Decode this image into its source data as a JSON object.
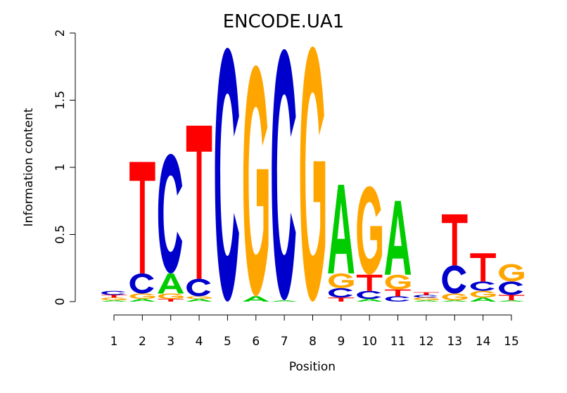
{
  "chart_data": {
    "type": "sequence-logo",
    "title": "ENCODE.UA1",
    "xlabel": "Position",
    "ylabel": "Information content",
    "ylim": [
      0,
      2
    ],
    "yticks": [
      0,
      0.5,
      1,
      1.5,
      2
    ],
    "ytick_labels": [
      "0",
      "0.5",
      "1",
      "1.5",
      "2"
    ],
    "positions": [
      1,
      2,
      3,
      4,
      5,
      6,
      7,
      8,
      9,
      10,
      11,
      12,
      13,
      14,
      15
    ],
    "colors": {
      "A": "#00CC00",
      "C": "#0000CC",
      "G": "#FFA500",
      "T": "#FF0000"
    },
    "stacks": [
      [
        {
          "letter": "A",
          "height": 0.01
        },
        {
          "letter": "G",
          "height": 0.02
        },
        {
          "letter": "T",
          "height": 0.02
        },
        {
          "letter": "C",
          "height": 0.03
        }
      ],
      [
        {
          "letter": "A",
          "height": 0.02
        },
        {
          "letter": "G",
          "height": 0.04
        },
        {
          "letter": "C",
          "height": 0.15
        },
        {
          "letter": "T",
          "height": 0.83
        }
      ],
      [
        {
          "letter": "T",
          "height": 0.02
        },
        {
          "letter": "G",
          "height": 0.04
        },
        {
          "letter": "A",
          "height": 0.15
        },
        {
          "letter": "C",
          "height": 0.89
        }
      ],
      [
        {
          "letter": "A",
          "height": 0.02
        },
        {
          "letter": "G",
          "height": 0.02
        },
        {
          "letter": "C",
          "height": 0.13
        },
        {
          "letter": "T",
          "height": 1.14
        }
      ],
      [
        {
          "letter": "C",
          "height": 1.89
        }
      ],
      [
        {
          "letter": "A",
          "height": 0.04
        },
        {
          "letter": "G",
          "height": 1.72
        }
      ],
      [
        {
          "letter": "A",
          "height": 0.01
        },
        {
          "letter": "C",
          "height": 1.87
        }
      ],
      [
        {
          "letter": "G",
          "height": 1.9
        }
      ],
      [
        {
          "letter": "T",
          "height": 0.03
        },
        {
          "letter": "C",
          "height": 0.07
        },
        {
          "letter": "G",
          "height": 0.11
        },
        {
          "letter": "A",
          "height": 0.66
        }
      ],
      [
        {
          "letter": "A",
          "height": 0.02
        },
        {
          "letter": "C",
          "height": 0.06
        },
        {
          "letter": "T",
          "height": 0.12
        },
        {
          "letter": "G",
          "height": 0.66
        }
      ],
      [
        {
          "letter": "C",
          "height": 0.04
        },
        {
          "letter": "T",
          "height": 0.05
        },
        {
          "letter": "G",
          "height": 0.11
        },
        {
          "letter": "A",
          "height": 0.55
        }
      ],
      [
        {
          "letter": "A",
          "height": 0.01
        },
        {
          "letter": "G",
          "height": 0.02
        },
        {
          "letter": "C",
          "height": 0.02
        },
        {
          "letter": "T",
          "height": 0.02
        }
      ],
      [
        {
          "letter": "A",
          "height": 0.01
        },
        {
          "letter": "G",
          "height": 0.05
        },
        {
          "letter": "C",
          "height": 0.21
        },
        {
          "letter": "T",
          "height": 0.38
        }
      ],
      [
        {
          "letter": "A",
          "height": 0.03
        },
        {
          "letter": "G",
          "height": 0.05
        },
        {
          "letter": "C",
          "height": 0.07
        },
        {
          "letter": "T",
          "height": 0.21
        }
      ],
      [
        {
          "letter": "A",
          "height": 0.01
        },
        {
          "letter": "T",
          "height": 0.04
        },
        {
          "letter": "C",
          "height": 0.1
        },
        {
          "letter": "G",
          "height": 0.13
        }
      ]
    ]
  }
}
